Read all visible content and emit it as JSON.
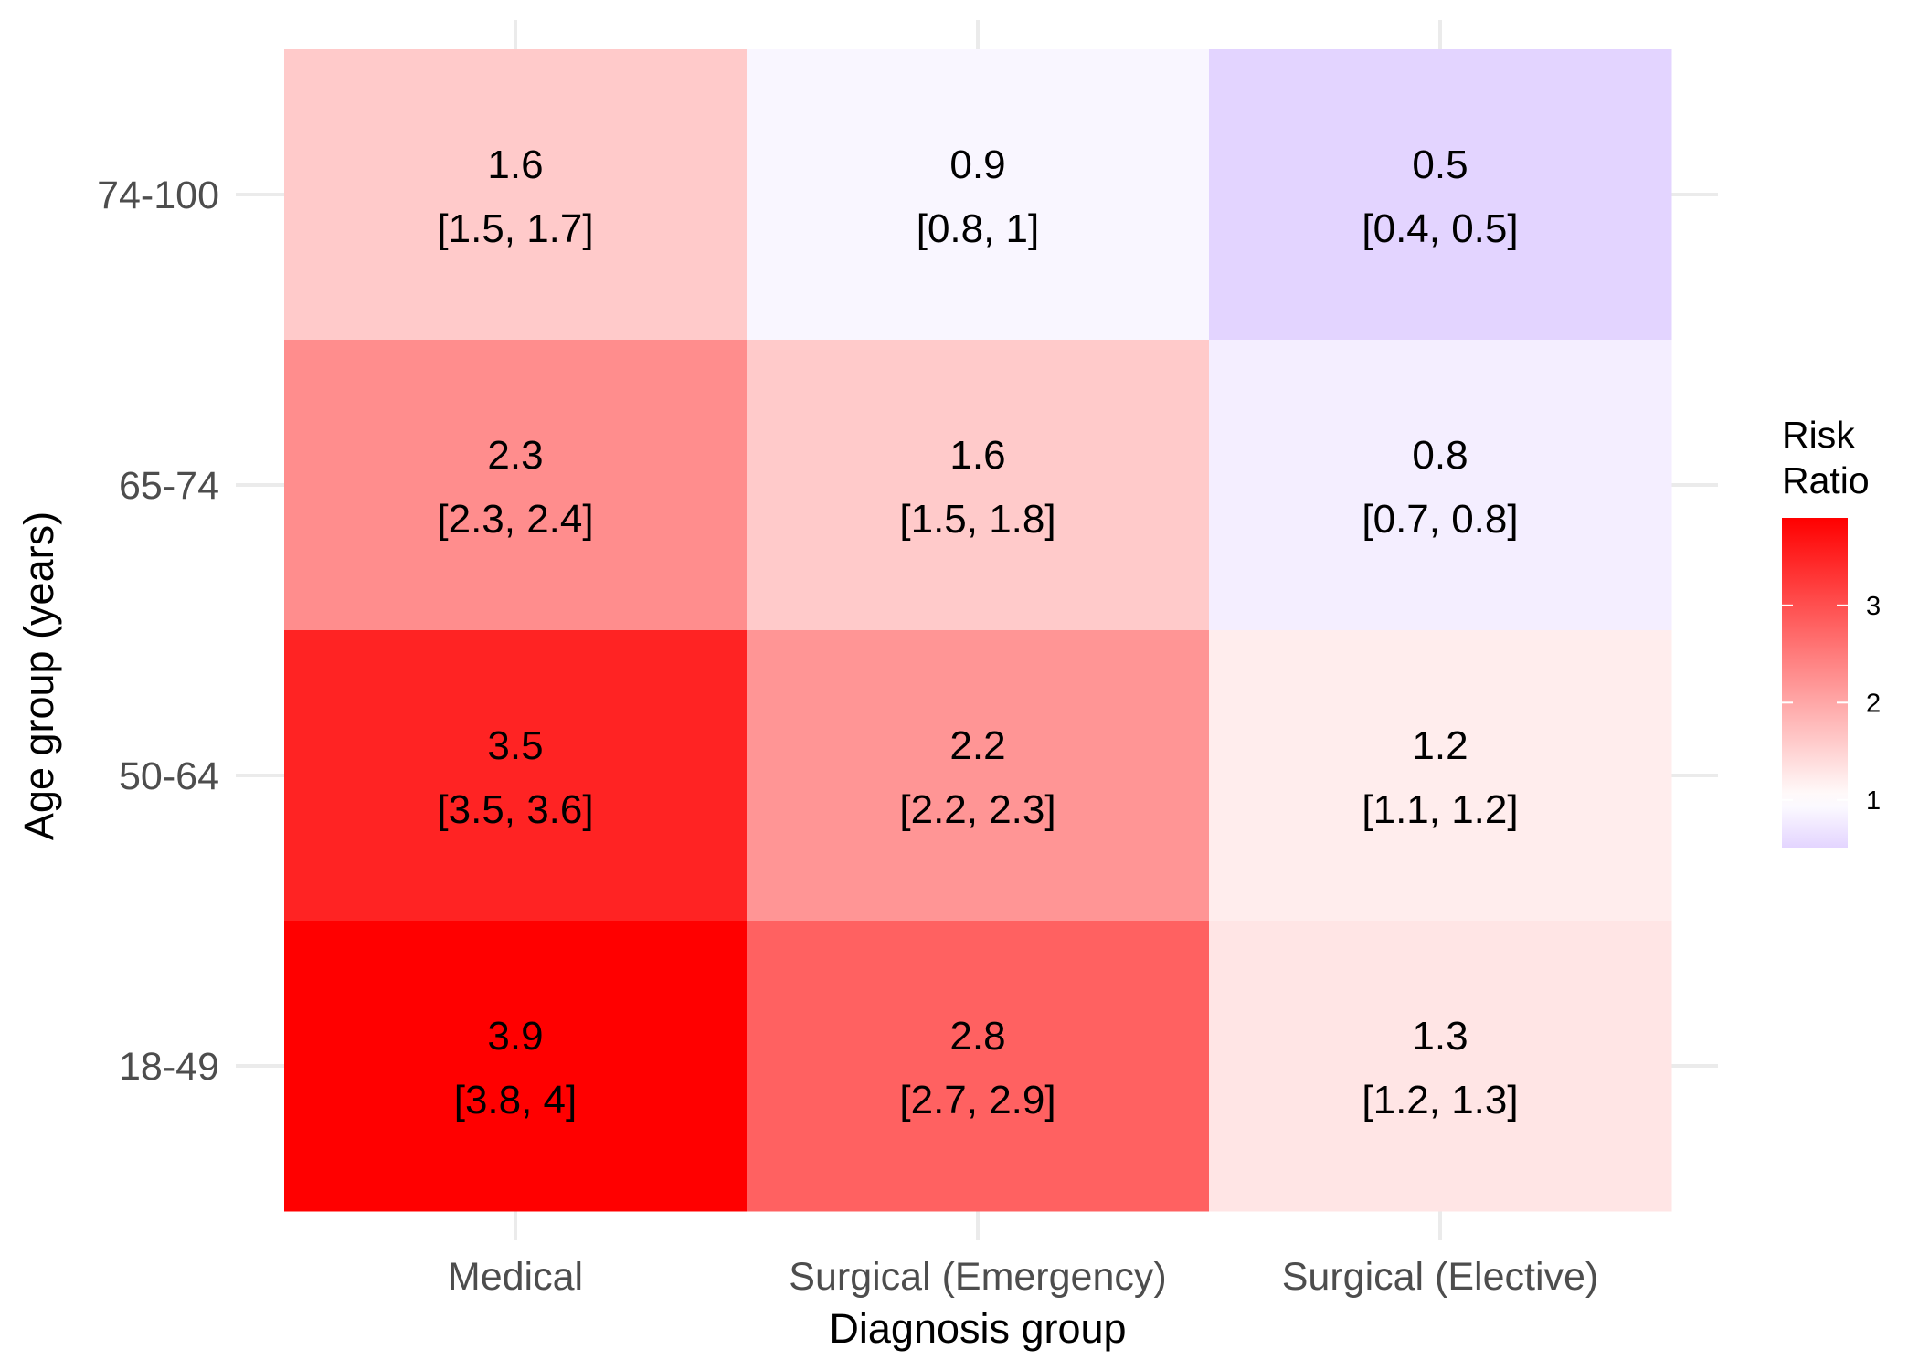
{
  "chart_data": {
    "type": "heatmap",
    "xlabel": "Diagnosis group",
    "ylabel": "Age group (years)",
    "x_categories": [
      "Medical",
      "Surgical (Emergency)",
      "Surgical (Elective)"
    ],
    "y_categories": [
      "18-49",
      "50-64",
      "65-74",
      "74-100"
    ],
    "cells": [
      {
        "x": "Medical",
        "y": "74-100",
        "value": 1.6,
        "ci": "[1.5, 1.7]"
      },
      {
        "x": "Surgical (Emergency)",
        "y": "74-100",
        "value": 0.9,
        "ci": "[0.8, 1]"
      },
      {
        "x": "Surgical (Elective)",
        "y": "74-100",
        "value": 0.5,
        "ci": "[0.4, 0.5]"
      },
      {
        "x": "Medical",
        "y": "65-74",
        "value": 2.3,
        "ci": "[2.3, 2.4]"
      },
      {
        "x": "Surgical (Emergency)",
        "y": "65-74",
        "value": 1.6,
        "ci": "[1.5, 1.8]"
      },
      {
        "x": "Surgical (Elective)",
        "y": "65-74",
        "value": 0.8,
        "ci": "[0.7, 0.8]"
      },
      {
        "x": "Medical",
        "y": "50-64",
        "value": 3.5,
        "ci": "[3.5, 3.6]"
      },
      {
        "x": "Surgical (Emergency)",
        "y": "50-64",
        "value": 2.2,
        "ci": "[2.2, 2.3]"
      },
      {
        "x": "Surgical (Elective)",
        "y": "50-64",
        "value": 1.2,
        "ci": "[1.1, 1.2]"
      },
      {
        "x": "Medical",
        "y": "18-49",
        "value": 3.9,
        "ci": "[3.8, 4]"
      },
      {
        "x": "Surgical (Emergency)",
        "y": "18-49",
        "value": 2.8,
        "ci": "[2.7, 2.9]"
      },
      {
        "x": "Surgical (Elective)",
        "y": "18-49",
        "value": 1.3,
        "ci": "[1.2, 1.3]"
      }
    ],
    "legend": {
      "title_lines": [
        "Risk",
        "Ratio"
      ],
      "ticks": [
        1,
        2,
        3
      ],
      "range": [
        0.5,
        3.9
      ],
      "placement": "right"
    },
    "color_scale": {
      "low": "#e3d4ff",
      "mid": "#ffffff",
      "high": "#ff0000",
      "midpoint": 1
    },
    "grid": true
  }
}
